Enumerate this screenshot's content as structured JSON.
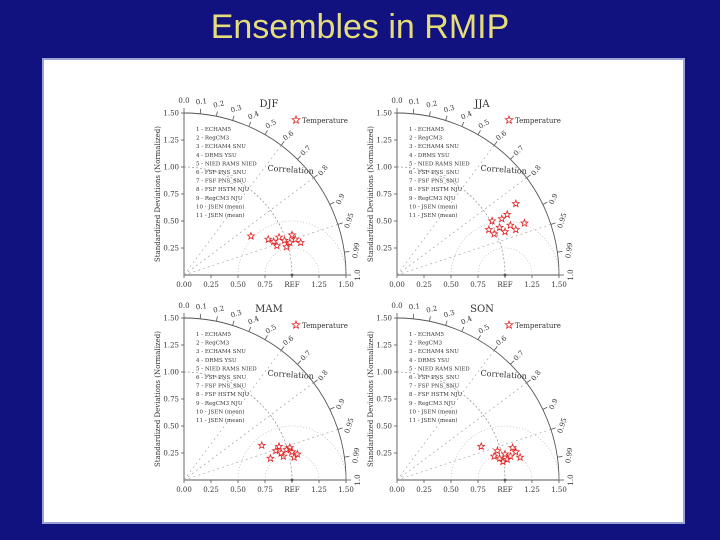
{
  "slide": {
    "title": "Ensembles in RMIP"
  },
  "chart_data": [
    {
      "type": "scatter",
      "subtype": "taylor-diagram",
      "title": "DJF",
      "ylabel": "Standardized Deviations (Normalized)",
      "arc_label": "Correlation",
      "marker_legend": "Temperature",
      "std_range": [
        0,
        1.5
      ],
      "std_ticks": [
        "0.00",
        "0.25",
        "0.50",
        "0.75",
        "REF",
        "1.25",
        "1.50"
      ],
      "y_ticks": [
        "0.25",
        "0.50",
        "0.75",
        "1.00",
        "1.25",
        "1.50"
      ],
      "corr_ticks": [
        "0.0",
        "0.1",
        "0.2",
        "0.3",
        "0.4",
        "0.5",
        "0.6",
        "0.7",
        "0.8",
        "0.9",
        "0.95",
        "0.99",
        "1.0"
      ],
      "models": [
        "1 - ECHAM5",
        "2 - RegCM3",
        "3 - ECHAM4 SNU",
        "4 - DRMS YSU",
        "5 - NIED RAMS NIED",
        "6 - FSF PNS_SNU",
        "7 - FSF PNS_SNU",
        "8 - FSF HSTM NJU",
        "9 - RegCM3 NJU",
        "10 - JSEN (mean)",
        "11 - JSEN (mean)"
      ],
      "points": [
        {
          "x": 0.78,
          "y": 0.33
        },
        {
          "x": 0.83,
          "y": 0.31
        },
        {
          "x": 0.88,
          "y": 0.35
        },
        {
          "x": 0.93,
          "y": 0.32
        },
        {
          "x": 0.98,
          "y": 0.3
        },
        {
          "x": 1.03,
          "y": 0.33
        },
        {
          "x": 1.08,
          "y": 0.3
        },
        {
          "x": 0.86,
          "y": 0.27
        },
        {
          "x": 0.95,
          "y": 0.26
        },
        {
          "x": 0.62,
          "y": 0.36
        },
        {
          "x": 1.0,
          "y": 0.37
        }
      ]
    },
    {
      "type": "scatter",
      "subtype": "taylor-diagram",
      "title": "JJA",
      "ylabel": "Standardized Deviations (Normalized)",
      "arc_label": "Correlation",
      "marker_legend": "Temperature",
      "std_range": [
        0,
        1.5
      ],
      "std_ticks": [
        "0.00",
        "0.25",
        "0.50",
        "0.75",
        "REF",
        "1.25",
        "1.50"
      ],
      "y_ticks": [
        "0.25",
        "0.50",
        "0.75",
        "1.00",
        "1.25",
        "1.50"
      ],
      "corr_ticks": [
        "0.0",
        "0.1",
        "0.2",
        "0.3",
        "0.4",
        "0.5",
        "0.6",
        "0.7",
        "0.8",
        "0.9",
        "0.95",
        "0.99",
        "1.0"
      ],
      "models": [
        "1 - ECHAM5",
        "2 - RegCM3",
        "3 - ECHAM4 SNU",
        "4 - DRMS YSU",
        "5 - NIED RAMS NIED",
        "6 - FSF PNS_SNU",
        "7 - FSF PNS_SNU",
        "8 - FSF HSTM NJU",
        "9 - RegCM3 NJU",
        "10 - JSEN (mean)",
        "11 - JSEN (mean)"
      ],
      "points": [
        {
          "x": 0.85,
          "y": 0.42
        },
        {
          "x": 0.9,
          "y": 0.38
        },
        {
          "x": 0.95,
          "y": 0.44
        },
        {
          "x": 1.0,
          "y": 0.4
        },
        {
          "x": 1.05,
          "y": 0.46
        },
        {
          "x": 1.1,
          "y": 0.42
        },
        {
          "x": 1.18,
          "y": 0.48
        },
        {
          "x": 0.88,
          "y": 0.5
        },
        {
          "x": 0.97,
          "y": 0.52
        },
        {
          "x": 1.1,
          "y": 0.66
        },
        {
          "x": 1.02,
          "y": 0.56
        }
      ]
    },
    {
      "type": "scatter",
      "subtype": "taylor-diagram",
      "title": "MAM",
      "ylabel": "Standardized Deviations (Normalized)",
      "arc_label": "Correlation",
      "marker_legend": "Temperature",
      "std_range": [
        0,
        1.5
      ],
      "std_ticks": [
        "0.00",
        "0.25",
        "0.50",
        "0.75",
        "REF",
        "1.25",
        "1.50"
      ],
      "y_ticks": [
        "0.25",
        "0.50",
        "0.75",
        "1.00",
        "1.25",
        "1.50"
      ],
      "corr_ticks": [
        "0.0",
        "0.1",
        "0.2",
        "0.3",
        "0.4",
        "0.5",
        "0.6",
        "0.7",
        "0.8",
        "0.9",
        "0.95",
        "0.99",
        "1.0"
      ],
      "models": [
        "1 - ECHAM5",
        "2 - RegCM3",
        "3 - ECHAM4 SNU",
        "4 - DRMS YSU",
        "5 - NIED RAMS NIED",
        "6 - FSF PNS_SNU",
        "7 - FSF PNS_SNU",
        "8 - FSF HSTM NJU",
        "9 - RegCM3 NJU",
        "10 - JSEN (mean)",
        "11 - JSEN (mean)"
      ],
      "points": [
        {
          "x": 0.85,
          "y": 0.27
        },
        {
          "x": 0.9,
          "y": 0.25
        },
        {
          "x": 0.95,
          "y": 0.28
        },
        {
          "x": 1.0,
          "y": 0.26
        },
        {
          "x": 1.05,
          "y": 0.24
        },
        {
          "x": 0.92,
          "y": 0.22
        },
        {
          "x": 0.98,
          "y": 0.3
        },
        {
          "x": 0.88,
          "y": 0.31
        },
        {
          "x": 1.02,
          "y": 0.21
        },
        {
          "x": 0.72,
          "y": 0.32
        },
        {
          "x": 0.8,
          "y": 0.2
        }
      ]
    },
    {
      "type": "scatter",
      "subtype": "taylor-diagram",
      "title": "SON",
      "ylabel": "Standardized Deviations (Normalized)",
      "arc_label": "Correlation",
      "marker_legend": "Temperature",
      "std_range": [
        0,
        1.5
      ],
      "std_ticks": [
        "0.00",
        "0.25",
        "0.50",
        "0.75",
        "REF",
        "1.25",
        "1.50"
      ],
      "y_ticks": [
        "0.25",
        "0.50",
        "0.75",
        "1.00",
        "1.25",
        "1.50"
      ],
      "corr_ticks": [
        "0.0",
        "0.1",
        "0.2",
        "0.3",
        "0.4",
        "0.5",
        "0.6",
        "0.7",
        "0.8",
        "0.9",
        "0.95",
        "0.99",
        "1.0"
      ],
      "models": [
        "1 - ECHAM5",
        "2 - RegCM3",
        "3 - ECHAM4 SNU",
        "4 - DRMS YSU",
        "5 - NIED RAMS NIED",
        "6 - FSF PNS_SNU",
        "7 - FSF PNS_SNU",
        "8 - FSF HSTM NJU",
        "9 - RegCM3 NJU",
        "10 - JSEN (mean)",
        "11 - JSEN (mean)"
      ],
      "points": [
        {
          "x": 0.9,
          "y": 0.22
        },
        {
          "x": 0.95,
          "y": 0.2
        },
        {
          "x": 1.0,
          "y": 0.24
        },
        {
          "x": 1.05,
          "y": 0.22
        },
        {
          "x": 1.1,
          "y": 0.26
        },
        {
          "x": 1.14,
          "y": 0.21
        },
        {
          "x": 0.98,
          "y": 0.17
        },
        {
          "x": 1.07,
          "y": 0.3
        },
        {
          "x": 0.93,
          "y": 0.27
        },
        {
          "x": 0.78,
          "y": 0.31
        },
        {
          "x": 1.02,
          "y": 0.19
        }
      ]
    }
  ],
  "colors": {
    "background": "#111180",
    "title": "#e5dc7a",
    "marker": "#e32020",
    "axis": "#555555"
  }
}
